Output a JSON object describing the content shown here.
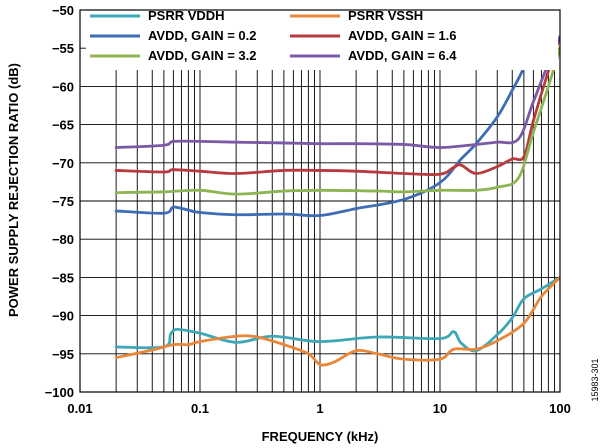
{
  "chart_data": {
    "type": "line",
    "title": "",
    "xlabel": "FREQUENCY (kHz)",
    "ylabel": "POWER SUPPLY REJECTION RATIO (dB)",
    "xscale": "log",
    "xlim": [
      0.01,
      100
    ],
    "ylim": [
      -100,
      -50
    ],
    "grid": true,
    "legend_position": "top",
    "x_ticks": [
      0.01,
      0.1,
      1,
      10,
      100
    ],
    "x_tick_labels": [
      "0.01",
      "0.1",
      "1",
      "10",
      "100"
    ],
    "y_ticks": [
      -100,
      -95,
      -90,
      -85,
      -80,
      -75,
      -70,
      -65,
      -60,
      -55,
      -50
    ],
    "y_tick_labels": [
      "−100",
      "−95",
      "−90",
      "−85",
      "−80",
      "−75",
      "−70",
      "−65",
      "−60",
      "−55",
      "−50"
    ],
    "figure_id": "15983-301",
    "series": [
      {
        "name": "PSRR VDDH",
        "color": "#3ea8b9",
        "points": [
          [
            0.02,
            -94.1
          ],
          [
            0.05,
            -94.1
          ],
          [
            0.057,
            -92.4
          ],
          [
            0.065,
            -91.8
          ],
          [
            0.1,
            -92.3
          ],
          [
            0.2,
            -93.5
          ],
          [
            0.4,
            -92.7
          ],
          [
            1,
            -93.4
          ],
          [
            3,
            -92.8
          ],
          [
            10,
            -93.0
          ],
          [
            13,
            -92.1
          ],
          [
            15,
            -93.6
          ],
          [
            20,
            -94.6
          ],
          [
            30,
            -92.5
          ],
          [
            40,
            -90.3
          ],
          [
            50,
            -87.8
          ],
          [
            70,
            -86.5
          ],
          [
            100,
            -85.0
          ]
        ]
      },
      {
        "name": "PSRR VSSH",
        "color": "#e8873a",
        "points": [
          [
            0.02,
            -95.5
          ],
          [
            0.04,
            -94.5
          ],
          [
            0.06,
            -93.8
          ],
          [
            0.08,
            -93.8
          ],
          [
            0.1,
            -93.4
          ],
          [
            0.2,
            -92.7
          ],
          [
            0.3,
            -92.8
          ],
          [
            0.5,
            -93.8
          ],
          [
            0.8,
            -95.0
          ],
          [
            1,
            -96.4
          ],
          [
            1.3,
            -96.1
          ],
          [
            2,
            -94.6
          ],
          [
            3,
            -95.0
          ],
          [
            5,
            -95.7
          ],
          [
            10,
            -95.7
          ],
          [
            13,
            -94.4
          ],
          [
            20,
            -94.4
          ],
          [
            30,
            -93.3
          ],
          [
            50,
            -91.0
          ],
          [
            70,
            -87.5
          ],
          [
            100,
            -85.0
          ]
        ]
      },
      {
        "name": "AVDD, GAIN = 0.2",
        "color": "#3f6db5",
        "points": [
          [
            0.02,
            -76.3
          ],
          [
            0.05,
            -76.6
          ],
          [
            0.06,
            -75.8
          ],
          [
            0.08,
            -76.2
          ],
          [
            0.1,
            -76.5
          ],
          [
            0.2,
            -76.8
          ],
          [
            0.5,
            -76.7
          ],
          [
            1,
            -76.9
          ],
          [
            2,
            -76.0
          ],
          [
            5,
            -74.8
          ],
          [
            10,
            -72.6
          ],
          [
            15,
            -69.5
          ],
          [
            20,
            -67.5
          ],
          [
            30,
            -64.0
          ],
          [
            40,
            -60.5
          ],
          [
            50,
            -57.5
          ],
          [
            60,
            -53.5
          ],
          [
            70,
            -50.0
          ]
        ]
      },
      {
        "name": "AVDD, GAIN = 1.6",
        "color": "#b83a3e",
        "points": [
          [
            0.02,
            -71.0
          ],
          [
            0.05,
            -71.2
          ],
          [
            0.06,
            -70.9
          ],
          [
            0.1,
            -71.1
          ],
          [
            0.2,
            -71.4
          ],
          [
            0.5,
            -71.0
          ],
          [
            1,
            -71.0
          ],
          [
            2,
            -71.1
          ],
          [
            5,
            -71.4
          ],
          [
            10,
            -71.5
          ],
          [
            13,
            -70.6
          ],
          [
            15,
            -70.3
          ],
          [
            20,
            -71.4
          ],
          [
            30,
            -70.5
          ],
          [
            40,
            -69.5
          ],
          [
            50,
            -69.2
          ],
          [
            60,
            -64.5
          ],
          [
            80,
            -58.0
          ],
          [
            100,
            -53.5
          ]
        ]
      },
      {
        "name": "AVDD, GAIN = 3.2",
        "color": "#8db553",
        "points": [
          [
            0.02,
            -73.9
          ],
          [
            0.05,
            -73.8
          ],
          [
            0.1,
            -73.6
          ],
          [
            0.2,
            -74.1
          ],
          [
            0.5,
            -73.7
          ],
          [
            1,
            -73.6
          ],
          [
            3,
            -73.7
          ],
          [
            5,
            -73.8
          ],
          [
            10,
            -73.6
          ],
          [
            20,
            -73.6
          ],
          [
            30,
            -73.2
          ],
          [
            45,
            -72.0
          ],
          [
            60,
            -66.0
          ],
          [
            80,
            -60.0
          ],
          [
            100,
            -55.0
          ]
        ]
      },
      {
        "name": "AVDD, GAIN = 6.4",
        "color": "#7a5aa6",
        "points": [
          [
            0.02,
            -68.0
          ],
          [
            0.05,
            -67.7
          ],
          [
            0.06,
            -67.2
          ],
          [
            0.1,
            -67.2
          ],
          [
            0.2,
            -67.3
          ],
          [
            0.5,
            -67.4
          ],
          [
            1,
            -67.5
          ],
          [
            2,
            -67.5
          ],
          [
            5,
            -67.6
          ],
          [
            10,
            -68.0
          ],
          [
            20,
            -67.6
          ],
          [
            30,
            -67.3
          ],
          [
            45,
            -66.9
          ],
          [
            60,
            -62.0
          ],
          [
            80,
            -57.0
          ],
          [
            100,
            -53.5
          ]
        ]
      }
    ]
  }
}
